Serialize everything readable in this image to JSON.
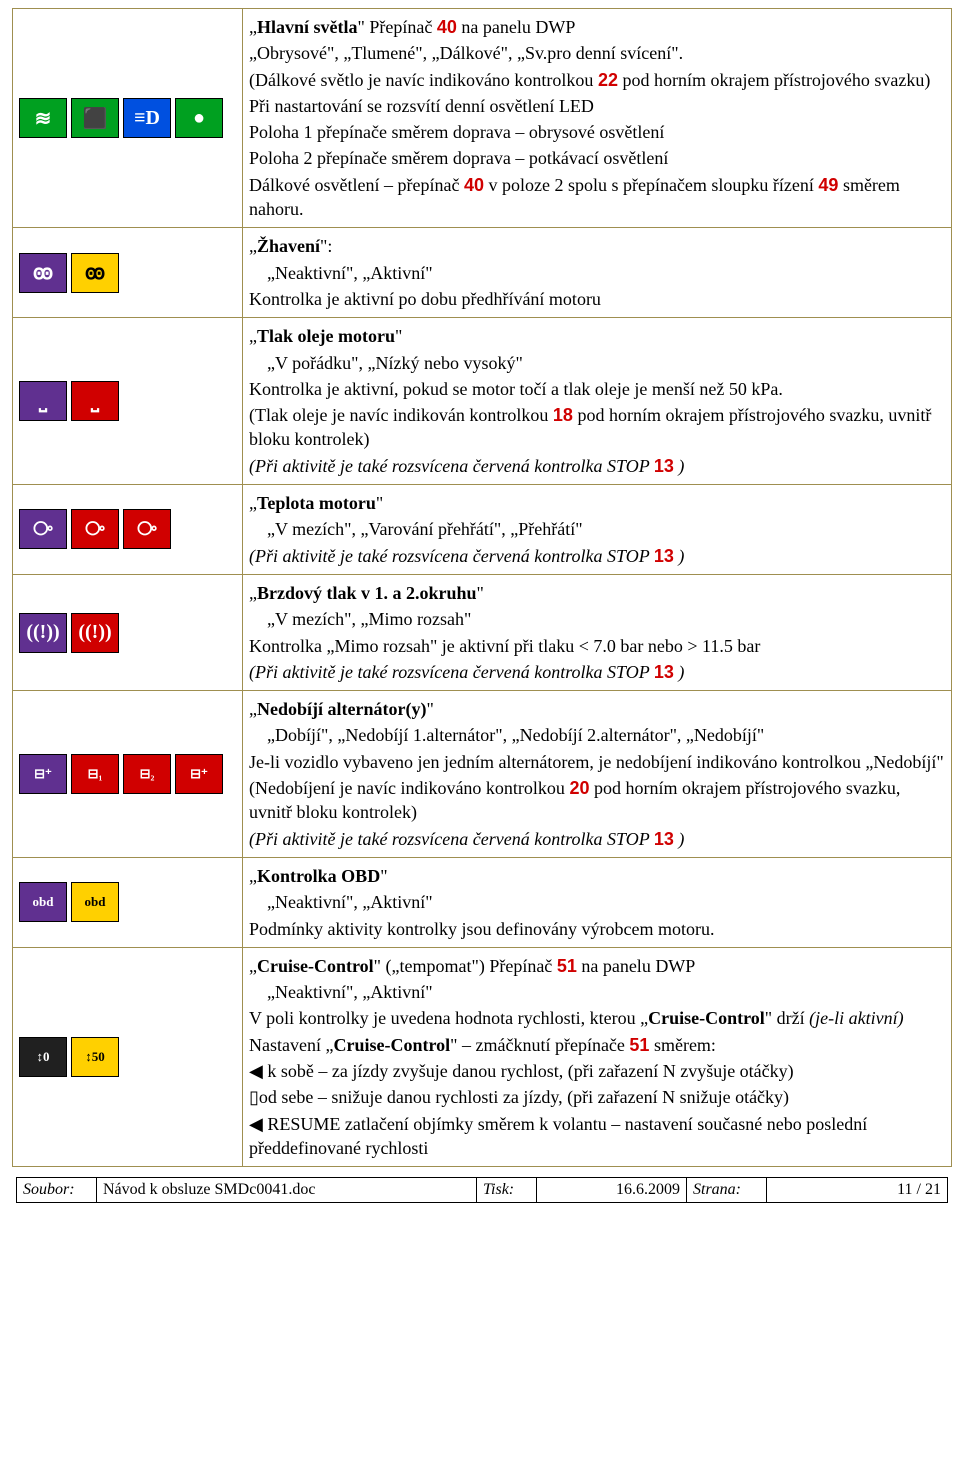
{
  "rows": [
    {
      "icons": [
        {
          "bg": "green",
          "glyph": "≋"
        },
        {
          "bg": "green",
          "glyph": "⬛"
        },
        {
          "bg": "blue",
          "glyph": "≡D"
        },
        {
          "bg": "green",
          "glyph": "●"
        }
      ],
      "title_html": "„<b>Hlavní světla</b>\" Přepínač <span class='rednum'>40</span> na panelu DWP",
      "lines_html": [
        "„Obrysové\", „Tlumené\", „Dálkové\", „Sv.pro denní svícení\".",
        "(Dálkové světlo je navíc indikováno kontrolkou <span class='rednum'>22</span> pod horním okrajem přístrojového svazku)",
        "Při nastartování se rozsvítí denní osvětlení LED",
        "Poloha 1 přepínače směrem doprava – obrysové osvětlení",
        "Poloha 2 přepínače směrem doprava – potkávací osvětlení",
        "Dálkové osvětlení – přepínač <span class='rednum'>40</span> v poloze 2 spolu s přepínačem sloupku řízení <span class='rednum'>49</span> směrem nahoru."
      ]
    },
    {
      "icons": [
        {
          "bg": "purple",
          "glyph": "ꙭ"
        },
        {
          "bg": "yellow",
          "glyph": "ꙭ"
        }
      ],
      "title_html": "„<b>Žhavení</b>\":",
      "lines_html": [
        "&nbsp;&nbsp;&nbsp;&nbsp;„Neaktivní\", „Aktivní\"",
        "Kontrolka je aktivní po dobu předhřívání motoru"
      ]
    },
    {
      "icons": [
        {
          "bg": "purple",
          "glyph": "⎵"
        },
        {
          "bg": "red",
          "glyph": "⎵"
        }
      ],
      "title_html": "„<b>Tlak oleje motoru</b>\"",
      "lines_html": [
        "&nbsp;&nbsp;&nbsp;&nbsp;„V pořádku\", „Nízký nebo vysoký\"",
        "Kontrolka je aktivní, pokud se motor točí a tlak oleje je menší než 50 kPa.",
        "(Tlak oleje je navíc indikován kontrolkou <span class='rednum'>18</span> pod horním okrajem přístrojového svazku, uvnitř bloku kontrolek)",
        "<i>(Při aktivitě je také rozsvícena červená kontrolka STOP </i><span class='rednum'>13</span><i> )</i>"
      ]
    },
    {
      "icons": [
        {
          "bg": "purple",
          "glyph": "⧂"
        },
        {
          "bg": "red",
          "glyph": "⧂"
        },
        {
          "bg": "red",
          "glyph": "⧂"
        }
      ],
      "title_html": "„<b>Teplota motoru</b>\"",
      "lines_html": [
        "&nbsp;&nbsp;&nbsp;&nbsp;„V mezích\", „Varování přehřátí\", „Přehřátí\"",
        "<i>(Při aktivitě je také rozsvícena červená kontrolka STOP </i><span class='rednum'>13</span><i> )</i>"
      ]
    },
    {
      "icons": [
        {
          "bg": "purple",
          "glyph": "((!))"
        },
        {
          "bg": "red",
          "glyph": "((!))"
        }
      ],
      "title_html": "„<b>Brzdový tlak v 1. a 2.okruhu</b>\"",
      "lines_html": [
        "&nbsp;&nbsp;&nbsp;&nbsp;„V mezích\", „Mimo rozsah\"",
        "Kontrolka „Mimo rozsah\" je aktivní při tlaku &lt; 7.0 bar  nebo &gt; 11.5 bar",
        "<i>(Při aktivitě je také rozsvícena červená kontrolka STOP </i><span class='rednum'>13</span><i> )</i>"
      ]
    },
    {
      "icons": [
        {
          "bg": "purple",
          "glyph": "⊟⁺",
          "cls": "small-text"
        },
        {
          "bg": "red",
          "glyph": "⊟₁",
          "cls": "small-text"
        },
        {
          "bg": "red",
          "glyph": "⊟₂",
          "cls": "small-text"
        },
        {
          "bg": "red",
          "glyph": "⊟⁺",
          "cls": "small-text"
        }
      ],
      "title_html": "„<b>Nedobíjí alternátor(y)</b>\"",
      "lines_html": [
        "&nbsp;&nbsp;&nbsp;&nbsp;„Dobíjí\", „Nedobíjí 1.alternátor\", „Nedobíjí 2.alternátor\", „Nedobíjí\"",
        "Je-li vozidlo vybaveno jen jedním alternátorem, je nedobíjení indikováno kontrolkou „Nedobíjí\"",
        "(Nedobíjení je navíc indikováno kontrolkou <span class='rednum'>20</span> pod horním okrajem přístrojového svazku, uvnitř bloku kontrolek)",
        "<i>(Při aktivitě je také rozsvícena červená kontrolka STOP </i><span class='rednum'>13</span><i> )</i>"
      ]
    },
    {
      "icons": [
        {
          "bg": "purple",
          "glyph": "obd",
          "cls": "small-text"
        },
        {
          "bg": "yellow",
          "glyph": "obd",
          "cls": "small-text"
        }
      ],
      "title_html": "„<b>Kontrolka OBD</b>\"",
      "lines_html": [
        "&nbsp;&nbsp;&nbsp;&nbsp;„Neaktivní\", „Aktivní\"",
        "Podmínky aktivity kontrolky jsou definovány výrobcem motoru."
      ]
    },
    {
      "icons": [
        {
          "bg": "black",
          "glyph": "↕0",
          "cls": "small-text"
        },
        {
          "bg": "yellow",
          "glyph": "↕50",
          "cls": "small-text"
        }
      ],
      "title_html": "„<b>Cruise-Control</b>\" („tempomat\") Přepínač <span class='rednum'>51</span> na panelu DWP",
      "lines_html": [
        "&nbsp;&nbsp;&nbsp;&nbsp;„Neaktivní\", „Aktivní\"",
        "V poli kontrolky je uvedena hodnota rychlosti, kterou „<b>Cruise-Control</b>\" drží <i>(je-li aktivní)</i>",
        "Nastavení „<b>Cruise-Control</b>\" – zmáčknutí přepínače <span class='rednum'>51</span> směrem:",
        "<span class='tri'>◀</span> k sobě – za jízdy zvyšuje danou rychlost, (při zařazení N zvyšuje otáčky)",
        "▯od sebe – snižuje danou rychlosti za jízdy, (při zařazení N snižuje otáčky)",
        "<span class='tri'>◀</span> RESUME zatlačení objímky směrem k volantu – nastavení současné nebo poslední předdefinované rychlosti"
      ]
    }
  ],
  "footer": {
    "file_label": "Soubor:",
    "file_value": "Návod k obsluze SMDc0041.doc",
    "print_label": "Tisk:",
    "print_value": "16.6.2009",
    "page_label": "Strana:",
    "page_value": "11 / 21"
  }
}
